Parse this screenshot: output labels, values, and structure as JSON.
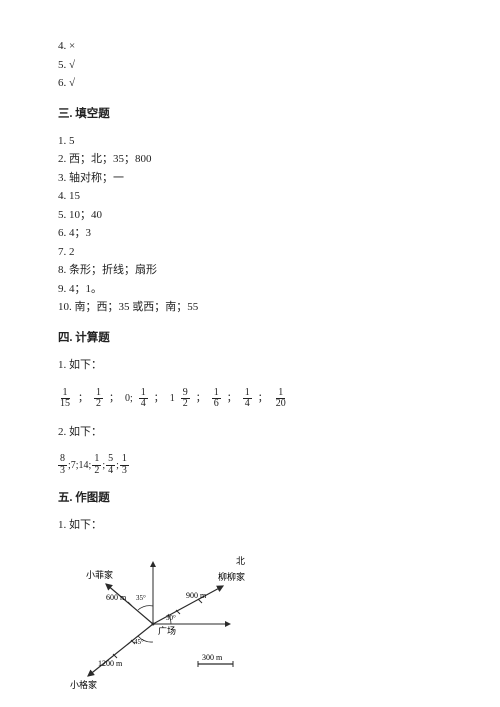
{
  "topAnswers": [
    {
      "no": "4.",
      "mark": "×"
    },
    {
      "no": "5.",
      "mark": "√"
    },
    {
      "no": "6.",
      "mark": "√"
    }
  ],
  "sections": {
    "fill": {
      "title": "三. 填空题",
      "items": [
        "1. 5",
        "2. 西；北；35；800",
        "3. 轴对称；一",
        "4. 15",
        "5. 10；40",
        "6. 4；3",
        "7. 2",
        "8. 条形；折线；扇形",
        "9. 4；1。",
        "10. 南；西；35 或西；南；55"
      ]
    },
    "calc": {
      "title": "四. 计算题",
      "problems": [
        {
          "label": "1. 如下：",
          "row1": [
            {
              "n": "1",
              "d": "15"
            },
            "；",
            {
              "n": "1",
              "d": "2"
            },
            "；",
            "0;",
            {
              "n": "1",
              "d": "4"
            },
            "；",
            "1",
            {
              "n": "9",
              "d": "2"
            },
            "；",
            {
              "n": "1",
              "d": "6"
            },
            "；",
            {
              "n": "1",
              "d": "4"
            },
            "；",
            {
              "n": "1",
              "d": "20"
            }
          ]
        },
        {
          "label": "2. 如下：",
          "row2": [
            {
              "n": "8",
              "d": "3"
            },
            ";7;14;",
            {
              "n": "1",
              "d": "2"
            },
            ";",
            {
              "n": "5",
              "d": "4"
            },
            ";",
            {
              "n": "1",
              "d": "3"
            }
          ]
        }
      ]
    },
    "draw": {
      "title": "五. 作图题",
      "label": "1. 如下："
    }
  },
  "diagram": {
    "labels": {
      "north": "北",
      "home1": "小菲家",
      "home2": "柳柳家",
      "home3": "小格家",
      "center": "广场",
      "d1": "600 m",
      "d2": "900 m",
      "d3": "1200 m",
      "scale": "300 m",
      "a1": "35°",
      "a2": "30°",
      "a3": "45°"
    },
    "colors": {
      "stroke": "#2a2a2a",
      "fill": "#ffffff"
    }
  }
}
